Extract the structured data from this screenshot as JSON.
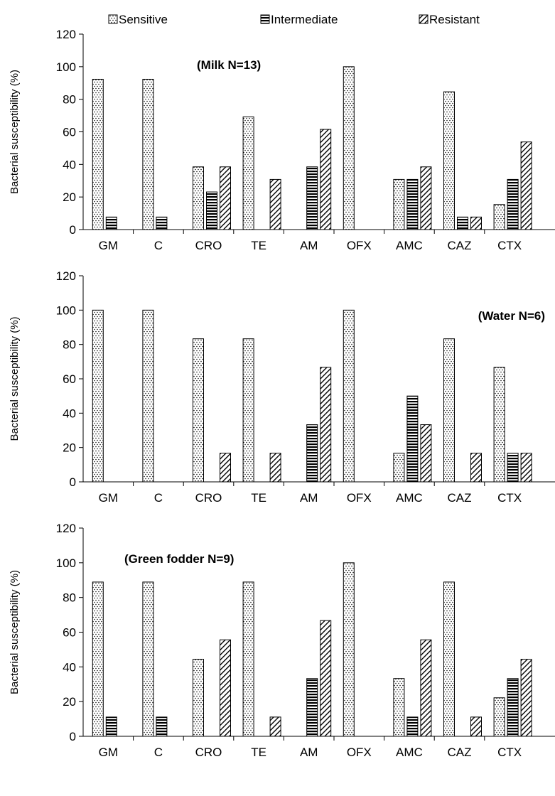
{
  "legend": [
    {
      "label": "Sensitive",
      "pattern": "dots"
    },
    {
      "label": "Intermediate",
      "pattern": "hlines"
    },
    {
      "label": "Resistant",
      "pattern": "diag"
    }
  ],
  "chart_data": [
    {
      "type": "bar",
      "title": "(Milk  N=13)",
      "ylabel": "Bacterial susceptibility (%)",
      "ylim": [
        0,
        120
      ],
      "yticks": [
        0,
        20,
        40,
        60,
        80,
        100,
        120
      ],
      "categories": [
        "GM",
        "C",
        "CRO",
        "TE",
        "AM",
        "OFX",
        "AMC",
        "CAZ",
        "CTX"
      ],
      "series": [
        {
          "name": "Sensitive",
          "values": [
            92.3,
            92.3,
            38.5,
            69.2,
            0,
            100,
            30.8,
            84.6,
            15.4
          ]
        },
        {
          "name": "Intermediate",
          "values": [
            7.7,
            7.7,
            23.1,
            0,
            38.5,
            0,
            30.8,
            7.7,
            30.8
          ]
        },
        {
          "name": "Resistant",
          "values": [
            0,
            0,
            38.5,
            30.8,
            61.5,
            0,
            38.5,
            7.7,
            53.8
          ]
        }
      ],
      "legend_position": "top"
    },
    {
      "type": "bar",
      "title": "(Water N=6)",
      "ylabel": "Bacterial susceptibility (%)",
      "ylim": [
        0,
        120
      ],
      "yticks": [
        0,
        20,
        40,
        60,
        80,
        100,
        120
      ],
      "categories": [
        "GM",
        "C",
        "CRO",
        "TE",
        "AM",
        "OFX",
        "AMC",
        "CAZ",
        "CTX"
      ],
      "series": [
        {
          "name": "Sensitive",
          "values": [
            100,
            100,
            83.3,
            83.3,
            0,
            100,
            16.7,
            83.3,
            66.7
          ]
        },
        {
          "name": "Intermediate",
          "values": [
            0,
            0,
            0,
            0,
            33.3,
            0,
            50,
            0,
            16.7
          ]
        },
        {
          "name": "Resistant",
          "values": [
            0,
            0,
            16.7,
            16.7,
            66.7,
            0,
            33.3,
            16.7,
            16.7
          ]
        }
      ]
    },
    {
      "type": "bar",
      "title": "(Green fodder N=9)",
      "ylabel": "Bacterial susceptibility (%)",
      "ylim": [
        0,
        120
      ],
      "yticks": [
        0,
        20,
        40,
        60,
        80,
        100,
        120
      ],
      "categories": [
        "GM",
        "C",
        "CRO",
        "TE",
        "AM",
        "OFX",
        "AMC",
        "CAZ",
        "CTX"
      ],
      "series": [
        {
          "name": "Sensitive",
          "values": [
            88.9,
            88.9,
            44.4,
            88.9,
            0,
            100,
            33.3,
            88.9,
            22.2
          ]
        },
        {
          "name": "Intermediate",
          "values": [
            11.1,
            11.1,
            0,
            0,
            33.3,
            0,
            11.1,
            0,
            33.3
          ]
        },
        {
          "name": "Resistant",
          "values": [
            0,
            0,
            55.6,
            11.1,
            66.7,
            0,
            55.6,
            11.1,
            44.4
          ]
        }
      ]
    }
  ]
}
